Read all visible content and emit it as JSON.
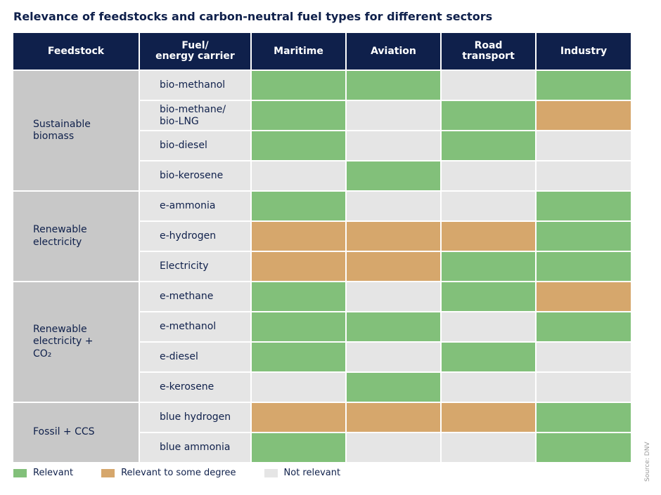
{
  "title": "Relevance of feedstocks and carbon-neutral fuel types for different sectors",
  "source": "Source: DNV",
  "legend": {
    "relevant": "Relevant",
    "partial": "Relevant to some degree",
    "not_relevant": "Not relevant"
  },
  "colors": {
    "relevant": "#82c07a",
    "partial": "#d6a76c",
    "not_relevant": "#e5e5e5",
    "header": "#0f204b",
    "feedstock_bg": "#c8c8c8"
  },
  "chart_data": {
    "type": "table",
    "columns": [
      "Feedstock",
      "Fuel/\nenergy carrier",
      "Maritime",
      "Aviation",
      "Road\ntransport",
      "Industry"
    ],
    "sectors": [
      "Maritime",
      "Aviation",
      "Road transport",
      "Industry"
    ],
    "groups": [
      {
        "feedstock": "Sustainable\nbiomass",
        "rows": [
          {
            "fuel": "bio-methanol",
            "values": [
              "relevant",
              "relevant",
              "not_relevant",
              "relevant"
            ]
          },
          {
            "fuel": "bio-methane/\nbio-LNG",
            "values": [
              "relevant",
              "not_relevant",
              "relevant",
              "partial"
            ]
          },
          {
            "fuel": "bio-diesel",
            "values": [
              "relevant",
              "not_relevant",
              "relevant",
              "not_relevant"
            ]
          },
          {
            "fuel": "bio-kerosene",
            "values": [
              "not_relevant",
              "relevant",
              "not_relevant",
              "not_relevant"
            ]
          }
        ]
      },
      {
        "feedstock": "Renewable\nelectricity",
        "rows": [
          {
            "fuel": "e-ammonia",
            "values": [
              "relevant",
              "not_relevant",
              "not_relevant",
              "relevant"
            ]
          },
          {
            "fuel": "e-hydrogen",
            "values": [
              "partial",
              "partial",
              "partial",
              "relevant"
            ]
          },
          {
            "fuel": "Electricity",
            "values": [
              "partial",
              "partial",
              "relevant",
              "relevant"
            ]
          }
        ]
      },
      {
        "feedstock": "Renewable\nelectricity +\nCO₂",
        "rows": [
          {
            "fuel": "e-methane",
            "values": [
              "relevant",
              "not_relevant",
              "relevant",
              "partial"
            ]
          },
          {
            "fuel": "e-methanol",
            "values": [
              "relevant",
              "relevant",
              "not_relevant",
              "relevant"
            ]
          },
          {
            "fuel": "e-diesel",
            "values": [
              "relevant",
              "not_relevant",
              "relevant",
              "not_relevant"
            ]
          },
          {
            "fuel": "e-kerosene",
            "values": [
              "not_relevant",
              "relevant",
              "not_relevant",
              "not_relevant"
            ]
          }
        ]
      },
      {
        "feedstock": "Fossil + CCS",
        "rows": [
          {
            "fuel": "blue hydrogen",
            "values": [
              "partial",
              "partial",
              "partial",
              "relevant"
            ]
          },
          {
            "fuel": "blue ammonia",
            "values": [
              "relevant",
              "not_relevant",
              "not_relevant",
              "relevant"
            ]
          }
        ]
      }
    ]
  }
}
